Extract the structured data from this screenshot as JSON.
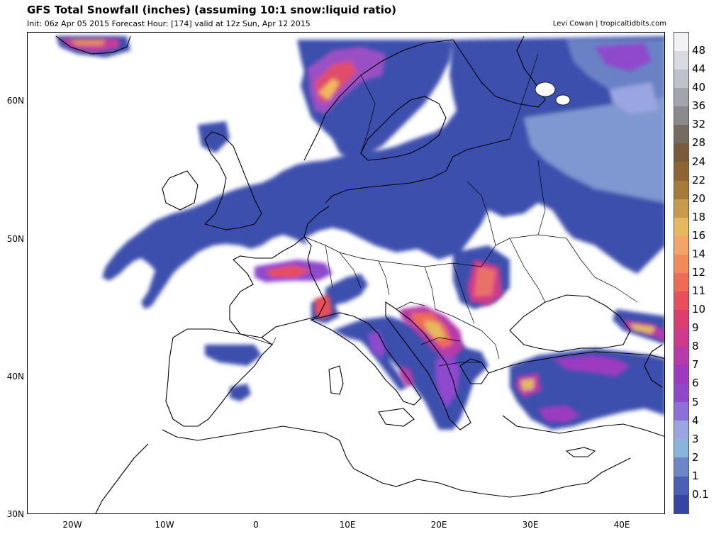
{
  "header": {
    "title": "GFS Total Snowfall (inches) (assuming 10:1 snow:liquid ratio)",
    "subtitle": "Init: 06z Apr 05 2015   Forecast Hour: [174]   valid at 12z Sun, Apr 12 2015",
    "credit": "Levi Cowan | tropicaltidbits.com"
  },
  "map": {
    "lat_labels": [
      "60N",
      "50N",
      "40N",
      "30N"
    ],
    "lon_labels": [
      "20W",
      "10W",
      "0",
      "10E",
      "20E",
      "30E",
      "40E"
    ],
    "ocean_color": "#ffffff",
    "coast_color": "#000000"
  },
  "colorbar": {
    "labels": [
      "48",
      "44",
      "40",
      "36",
      "32",
      "28",
      "24",
      "22",
      "20",
      "18",
      "16",
      "14",
      "12",
      "11",
      "10",
      "9",
      "8",
      "7",
      "6",
      "5",
      "4",
      "3",
      "2",
      "1",
      "0.1"
    ],
    "colors": [
      "#f2f2f4",
      "#d9dbe3",
      "#bfc2cc",
      "#a3a5ad",
      "#8a8a8e",
      "#766b60",
      "#7a5a3a",
      "#8c6532",
      "#a57b3a",
      "#c79a4c",
      "#e6b85f",
      "#f4a468",
      "#f38a5a",
      "#ee6b56",
      "#e84e5b",
      "#db3e6e",
      "#cf3b8b",
      "#b63aa8",
      "#9d3ac0",
      "#8f48cc",
      "#8b70d8",
      "#9aa6df",
      "#8bb4dc",
      "#6d86c8",
      "#4c5fb7",
      "#3545a6"
    ]
  }
}
